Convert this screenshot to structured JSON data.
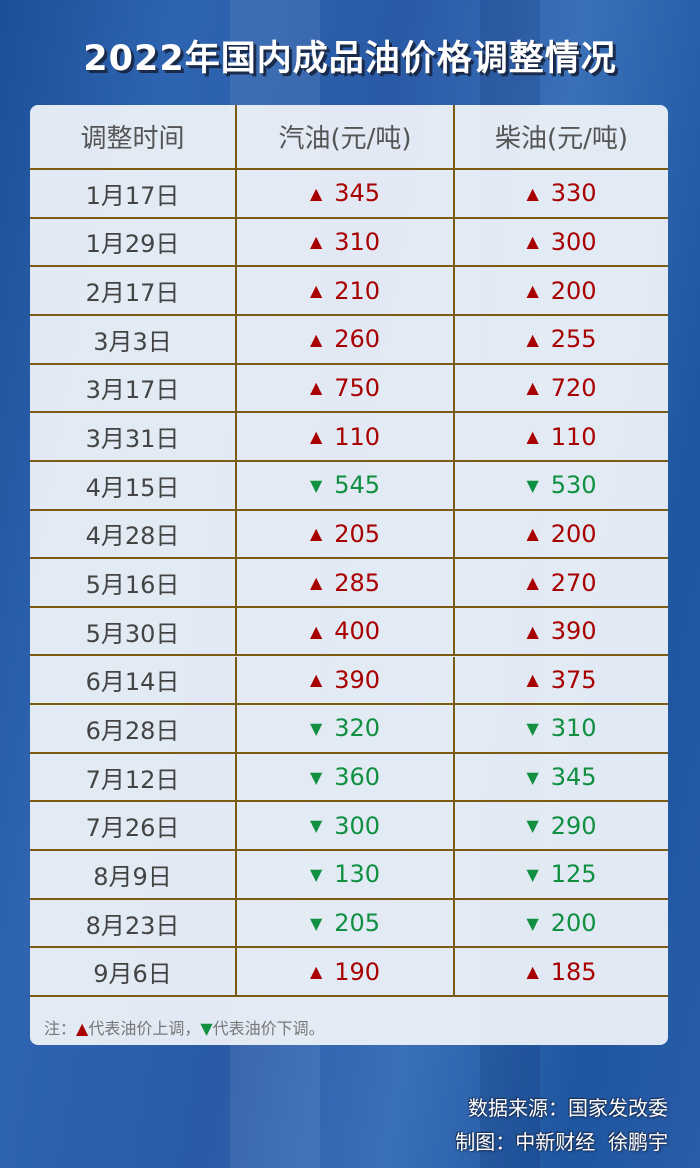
{
  "title": "2022年国内成品油价格调整情况",
  "colors": {
    "up": "#a80000",
    "down": "#109040",
    "border": "#7a5c16"
  },
  "chart_data": {
    "type": "table",
    "columns": [
      "调整时间",
      "汽油(元/吨)",
      "柴油(元/吨)"
    ],
    "rows": [
      {
        "date": "1月17日",
        "direction": "up",
        "gasoline": 345,
        "diesel": 330
      },
      {
        "date": "1月29日",
        "direction": "up",
        "gasoline": 310,
        "diesel": 300
      },
      {
        "date": "2月17日",
        "direction": "up",
        "gasoline": 210,
        "diesel": 200
      },
      {
        "date": "3月3日",
        "direction": "up",
        "gasoline": 260,
        "diesel": 255
      },
      {
        "date": "3月17日",
        "direction": "up",
        "gasoline": 750,
        "diesel": 720
      },
      {
        "date": "3月31日",
        "direction": "up",
        "gasoline": 110,
        "diesel": 110
      },
      {
        "date": "4月15日",
        "direction": "down",
        "gasoline": 545,
        "diesel": 530
      },
      {
        "date": "4月28日",
        "direction": "up",
        "gasoline": 205,
        "diesel": 200
      },
      {
        "date": "5月16日",
        "direction": "up",
        "gasoline": 285,
        "diesel": 270
      },
      {
        "date": "5月30日",
        "direction": "up",
        "gasoline": 400,
        "diesel": 390
      },
      {
        "date": "6月14日",
        "direction": "up",
        "gasoline": 390,
        "diesel": 375
      },
      {
        "date": "6月28日",
        "direction": "down",
        "gasoline": 320,
        "diesel": 310
      },
      {
        "date": "7月12日",
        "direction": "down",
        "gasoline": 360,
        "diesel": 345
      },
      {
        "date": "7月26日",
        "direction": "down",
        "gasoline": 300,
        "diesel": 290
      },
      {
        "date": "8月9日",
        "direction": "down",
        "gasoline": 130,
        "diesel": 125
      },
      {
        "date": "8月23日",
        "direction": "down",
        "gasoline": 205,
        "diesel": 200
      },
      {
        "date": "9月6日",
        "direction": "up",
        "gasoline": 190,
        "diesel": 185
      }
    ]
  },
  "note": {
    "prefix": "注：",
    "up_symbol": "▲",
    "up_text": "代表油价上调，",
    "down_symbol": "▼",
    "down_text": "代表油价下调。"
  },
  "footer": {
    "source": "数据来源：国家发改委",
    "credit": "制图：中新财经  徐鹏宇"
  }
}
